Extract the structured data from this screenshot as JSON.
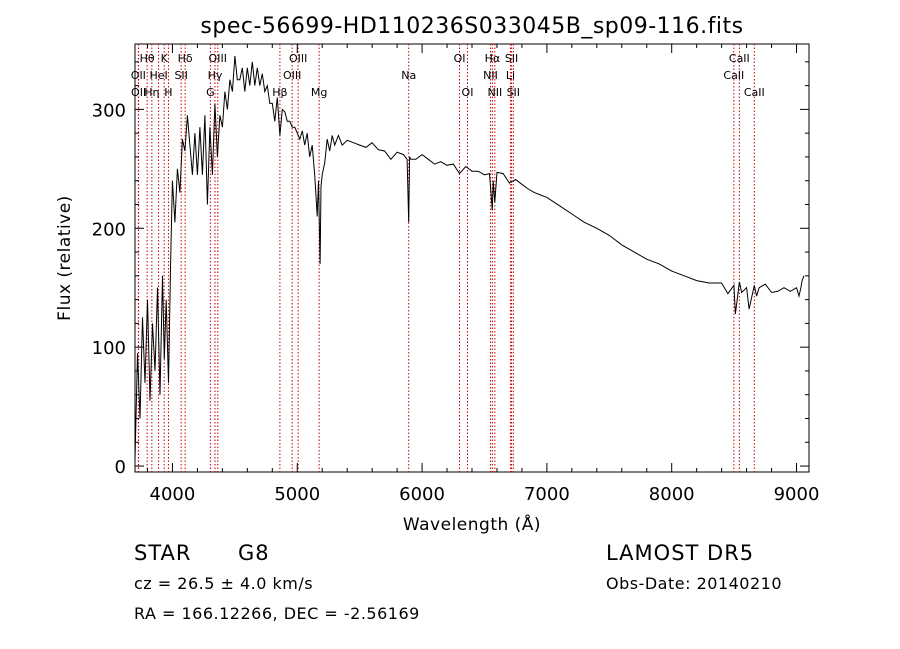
{
  "chart_data": {
    "type": "line",
    "title": "spec-56699-HD110236S033045B_sp09-116.fits",
    "xlabel": "Wavelength (Å)",
    "ylabel": "Flux (relative)",
    "xlim": [
      3700,
      9100
    ],
    "ylim": [
      -5,
      355
    ],
    "xticks": [
      4000,
      5000,
      6000,
      7000,
      8000,
      9000
    ],
    "yticks": [
      0,
      100,
      200,
      300
    ],
    "grid": false,
    "line_color": "#000000",
    "marker_color": "#cc0000",
    "series": [
      {
        "x": [
          3700,
          3720,
          3740,
          3760,
          3780,
          3800,
          3820,
          3840,
          3860,
          3880,
          3900,
          3920,
          3935,
          3950,
          3968,
          3985,
          4000,
          4020,
          4040,
          4060,
          4080,
          4100,
          4120,
          4140,
          4160,
          4180,
          4200,
          4220,
          4240,
          4260,
          4280,
          4300,
          4320,
          4340,
          4360,
          4380,
          4400,
          4420,
          4440,
          4460,
          4480,
          4500,
          4520,
          4540,
          4560,
          4580,
          4600,
          4620,
          4640,
          4660,
          4680,
          4700,
          4720,
          4740,
          4760,
          4780,
          4800,
          4820,
          4840,
          4861,
          4880,
          4900,
          4920,
          4940,
          4960,
          4980,
          5000,
          5020,
          5040,
          5060,
          5080,
          5100,
          5120,
          5140,
          5160,
          5170,
          5183,
          5190,
          5200,
          5220,
          5240,
          5260,
          5280,
          5300,
          5330,
          5360,
          5400,
          5450,
          5500,
          5550,
          5600,
          5650,
          5700,
          5750,
          5800,
          5850,
          5880,
          5893,
          5900,
          5910,
          5950,
          6000,
          6050,
          6100,
          6150,
          6200,
          6250,
          6300,
          6350,
          6400,
          6450,
          6500,
          6540,
          6563,
          6570,
          6583,
          6600,
          6650,
          6700,
          6750,
          6800,
          6850,
          6900,
          6950,
          7000,
          7100,
          7200,
          7300,
          7400,
          7500,
          7600,
          7700,
          7800,
          7900,
          8000,
          8100,
          8200,
          8300,
          8400,
          8450,
          8498,
          8510,
          8542,
          8560,
          8600,
          8620,
          8662,
          8680,
          8700,
          8750,
          8800,
          8850,
          8900,
          8950,
          9000,
          9020,
          9035,
          9045,
          9060
        ],
        "y": [
          5,
          95,
          40,
          125,
          70,
          140,
          55,
          120,
          80,
          150,
          60,
          160,
          90,
          140,
          70,
          170,
          240,
          205,
          250,
          230,
          275,
          265,
          295,
          270,
          245,
          280,
          245,
          285,
          245,
          295,
          220,
          285,
          245,
          305,
          260,
          295,
          285,
          315,
          300,
          325,
          315,
          345,
          325,
          325,
          335,
          315,
          335,
          320,
          340,
          320,
          335,
          320,
          330,
          315,
          320,
          305,
          305,
          290,
          310,
          278,
          300,
          298,
          290,
          290,
          285,
          285,
          280,
          275,
          282,
          270,
          280,
          260,
          270,
          245,
          210,
          240,
          170,
          235,
          245,
          255,
          275,
          265,
          278,
          270,
          278,
          270,
          274,
          272,
          270,
          268,
          272,
          266,
          265,
          258,
          264,
          262,
          258,
          205,
          260,
          258,
          258,
          262,
          258,
          254,
          256,
          253,
          254,
          246,
          252,
          248,
          248,
          245,
          246,
          215,
          240,
          222,
          247,
          246,
          238,
          241,
          237,
          233,
          230,
          228,
          226,
          219,
          212,
          205,
          200,
          194,
          186,
          180,
          174,
          170,
          164,
          160,
          156,
          154,
          154,
          145,
          152,
          128,
          155,
          146,
          150,
          132,
          152,
          143,
          150,
          153,
          146,
          147,
          150,
          147,
          150,
          143,
          150,
          156,
          160
        ]
      }
    ],
    "annotations": [
      {
        "label": "Hθ",
        "x": 3797,
        "row": 1
      },
      {
        "label": "K",
        "x": 3934,
        "row": 1
      },
      {
        "label": "Hδ",
        "x": 4102,
        "row": 1
      },
      {
        "label": "OIII",
        "x": 4363,
        "row": 1
      },
      {
        "label": "OIII",
        "x": 5007,
        "row": 1
      },
      {
        "label": "OI",
        "x": 6300,
        "row": 1
      },
      {
        "label": "Hα",
        "x": 6563,
        "row": 1
      },
      {
        "label": "SII",
        "x": 6717,
        "row": 1
      },
      {
        "label": "CaII",
        "x": 8542,
        "row": 1
      },
      {
        "label": "OII",
        "x": 3727,
        "row": 2
      },
      {
        "label": "HeI",
        "x": 3889,
        "row": 2
      },
      {
        "label": "SII",
        "x": 4070,
        "row": 2
      },
      {
        "label": "Hγ",
        "x": 4341,
        "row": 2
      },
      {
        "label": "OIII",
        "x": 4959,
        "row": 2
      },
      {
        "label": "Na",
        "x": 5893,
        "row": 2
      },
      {
        "label": "NII",
        "x": 6548,
        "row": 2
      },
      {
        "label": "Li",
        "x": 6708,
        "row": 2
      },
      {
        "label": "CaII",
        "x": 8498,
        "row": 2
      },
      {
        "label": "OII",
        "x": 3729,
        "row": 3
      },
      {
        "label": "Hη",
        "x": 3835,
        "row": 3
      },
      {
        "label": "H",
        "x": 3968,
        "row": 3
      },
      {
        "label": "G",
        "x": 4304,
        "row": 3
      },
      {
        "label": "Hβ",
        "x": 4861,
        "row": 3
      },
      {
        "label": "Mg",
        "x": 5175,
        "row": 3
      },
      {
        "label": "OI",
        "x": 6364,
        "row": 3
      },
      {
        "label": "NII",
        "x": 6583,
        "row": 3
      },
      {
        "label": "SII",
        "x": 6731,
        "row": 3
      },
      {
        "label": "CaII",
        "x": 8662,
        "row": 3
      }
    ]
  },
  "info": {
    "object_class": "STAR",
    "subclass": "G8",
    "survey": "LAMOST  DR5",
    "cz": "cz = 26.5 ± 4.0 km/s",
    "obs_date": "Obs-Date: 20140210",
    "coords": "RA = 166.12266, DEC =  -2.56169"
  }
}
